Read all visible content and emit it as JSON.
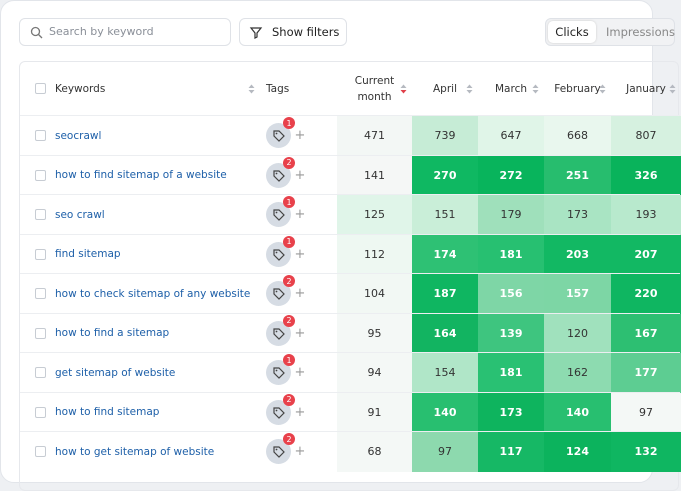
{
  "toolbar": {
    "search_placeholder": "Search by keyword",
    "filter_button": "Show filters",
    "toggle": [
      "Clicks",
      "Impressions"
    ],
    "active_toggle": 0
  },
  "table": {
    "columns": [
      "Keywords",
      "Tags",
      "Current month",
      "April",
      "March",
      "February",
      "January"
    ],
    "rows": [
      {
        "keyword": "seocrawl",
        "tags": 1,
        "current": 471,
        "months": [
          739,
          647,
          668,
          807
        ],
        "colors": [
          "#f3f7f5",
          "#c6ecd6",
          "#e0f5e8",
          "#e9f7ee",
          "#d6f1e0"
        ]
      },
      {
        "keyword": "how to find sitemap of a website",
        "tags": 2,
        "current": 141,
        "months": [
          270,
          272,
          251,
          326
        ],
        "colors": [
          "#f5f7f6",
          "#0fb862",
          "#08b45c",
          "#27bd6e",
          "#09b35b"
        ]
      },
      {
        "keyword": "seo crawl",
        "tags": 1,
        "current": 125,
        "months": [
          151,
          179,
          173,
          193
        ],
        "colors": [
          "#e0f5e9",
          "#c9eed8",
          "#9fe0bb",
          "#a9e4c3",
          "#b8e9cd"
        ]
      },
      {
        "keyword": "find sitemap",
        "tags": 1,
        "current": 112,
        "months": [
          174,
          181,
          203,
          207
        ],
        "colors": [
          "#eef8f2",
          "#2ec174",
          "#27c071",
          "#12b863",
          "#12b863"
        ]
      },
      {
        "keyword": "how to check sitemap of any website",
        "tags": 2,
        "current": 104,
        "months": [
          187,
          156,
          157,
          220
        ],
        "colors": [
          "#f2f8f4",
          "#0fb661",
          "#7ed6a6",
          "#7dd6a5",
          "#0fb661"
        ]
      },
      {
        "keyword": "how to find a sitemap",
        "tags": 2,
        "current": 95,
        "months": [
          164,
          139,
          120,
          167
        ],
        "colors": [
          "#f4f8f6",
          "#12b461",
          "#3ec57f",
          "#a0e1bd",
          "#2dbf72"
        ]
      },
      {
        "keyword": "get sitemap of website",
        "tags": 1,
        "current": 94,
        "months": [
          154,
          181,
          162,
          177
        ],
        "colors": [
          "#f4f8f6",
          "#b0e6c8",
          "#29c173",
          "#8ddbb0",
          "#5dcd92"
        ]
      },
      {
        "keyword": "how to find sitemap",
        "tags": 2,
        "current": 91,
        "months": [
          140,
          173,
          140,
          97
        ],
        "colors": [
          "#f4f8f6",
          "#28bf70",
          "#0eb45e",
          "#28bf70",
          "#f4f8f6"
        ]
      },
      {
        "keyword": "how to get sitemap of website",
        "tags": 2,
        "current": 68,
        "months": [
          97,
          117,
          124,
          132
        ],
        "colors": [
          "#f4f8f6",
          "#8dd9ae",
          "#16b865",
          "#0cb35d",
          "#0fb661"
        ]
      }
    ]
  }
}
